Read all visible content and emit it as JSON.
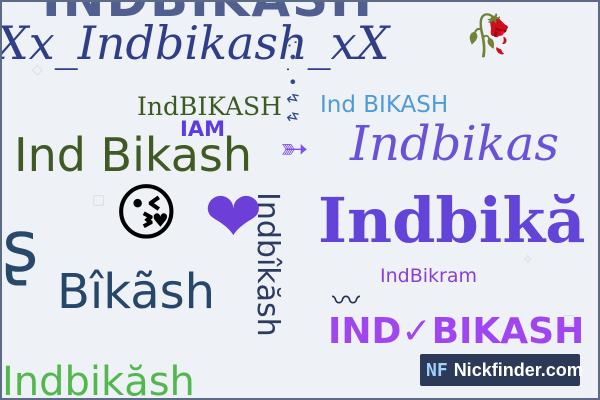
{
  "nicknames": {
    "top_strip": "INDBIKASH",
    "xx_line": "Xx_Indbika",
    "xx_line2": "sh_xX",
    "vertical_small": "∴ • . • ↯ ↯",
    "ind_caps": "IndBIKASH",
    "iam": "IAM",
    "ind_small_caps": "Ind BIKASH",
    "ind_bikash": "Ind Bikash",
    "ind_script": "Indbikas",
    "indbika_big": "Indbikă",
    "vertical_bikash": "Indbîkăsh",
    "bikash_mid": "Bîkãsh",
    "indbikram": "IndBikram",
    "ind_check": "IND✓BIKASH",
    "bottom_green": "Indbikăsh"
  },
  "symbols": {
    "rose": "🥀",
    "arrow": "➳",
    "kiss_emoji": "😘",
    "heart": "❤",
    "wave": "〰",
    "curly": "ʂ"
  },
  "badge": {
    "logo_text": "NF",
    "site_name": "Nickfinder.com"
  },
  "colors": {
    "background": "#eef1f6",
    "badge_bg": "#2d3a57"
  }
}
